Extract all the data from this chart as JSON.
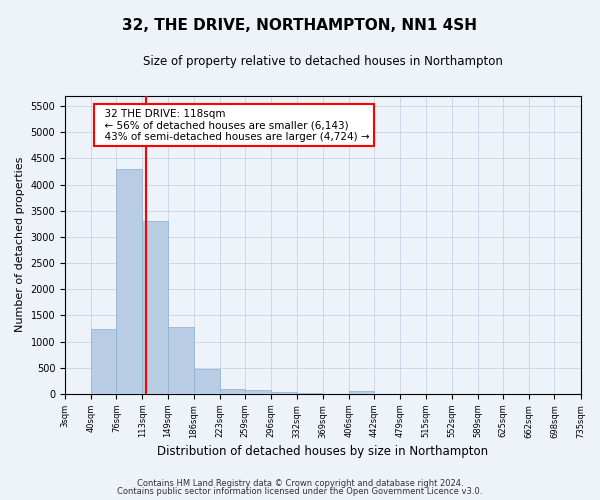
{
  "title": "32, THE DRIVE, NORTHAMPTON, NN1 4SH",
  "subtitle": "Size of property relative to detached houses in Northampton",
  "xlabel": "Distribution of detached houses by size in Northampton",
  "ylabel": "Number of detached properties",
  "footnote1": "Contains HM Land Registry data © Crown copyright and database right 2024.",
  "footnote2": "Contains public sector information licensed under the Open Government Licence v3.0.",
  "annotation_line1": "32 THE DRIVE: 118sqm",
  "annotation_line2": "← 56% of detached houses are smaller (6,143)",
  "annotation_line3": "43% of semi-detached houses are larger (4,724) →",
  "property_size": 118,
  "bar_color": "#b8cce4",
  "bar_edge_color": "#8ab0d0",
  "vline_color": "red",
  "background_color": "#eef2f9",
  "grid_color": "#c8d4e8",
  "bin_edges": [
    3,
    40,
    76,
    113,
    149,
    186,
    223,
    259,
    296,
    332,
    369,
    406,
    442,
    479,
    515,
    552,
    589,
    625,
    662,
    698,
    735
  ],
  "bar_heights": [
    0,
    1250,
    4300,
    3300,
    1270,
    480,
    100,
    70,
    45,
    10,
    5,
    50,
    2,
    1,
    0,
    0,
    0,
    0,
    0,
    0
  ],
  "ylim": [
    0,
    5700
  ],
  "yticks": [
    0,
    500,
    1000,
    1500,
    2000,
    2500,
    3000,
    3500,
    4000,
    4500,
    5000,
    5500
  ]
}
